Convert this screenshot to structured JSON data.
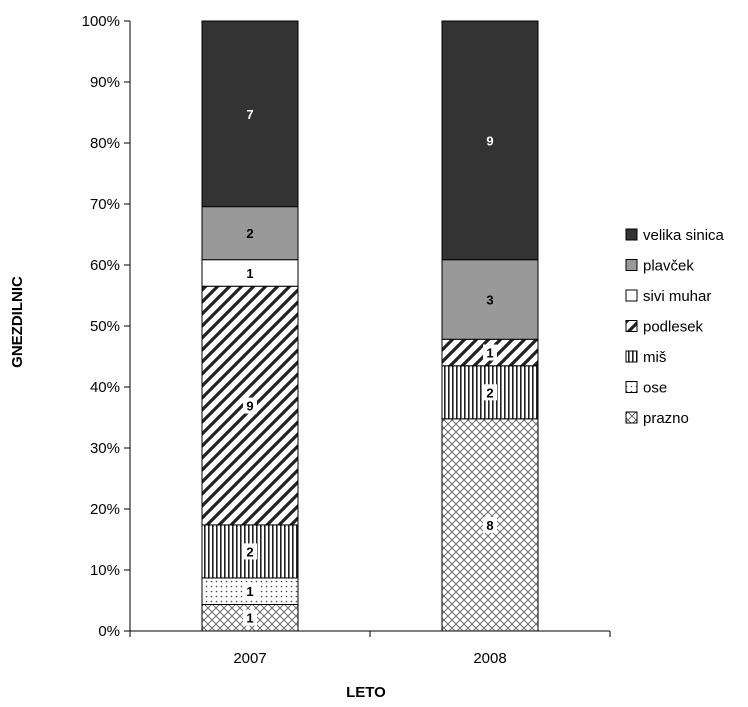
{
  "chart_data": {
    "type": "bar",
    "stacked": "percent",
    "categories": [
      "2007",
      "2008"
    ],
    "xlabel": "LETO",
    "ylabel": "GNEZDILNIC",
    "ylim": [
      0,
      100
    ],
    "yticks": [
      "0%",
      "10%",
      "20%",
      "30%",
      "40%",
      "50%",
      "60%",
      "70%",
      "80%",
      "90%",
      "100%"
    ],
    "legend_position": "right",
    "series": [
      {
        "name": "prazno",
        "values": [
          1,
          8
        ],
        "pattern": "crosshatch"
      },
      {
        "name": "ose",
        "values": [
          1,
          0
        ],
        "pattern": "dots"
      },
      {
        "name": "miš",
        "values": [
          2,
          2
        ],
        "pattern": "vertical-stripes"
      },
      {
        "name": "podlesek",
        "values": [
          9,
          1
        ],
        "pattern": "diagonal-stripes"
      },
      {
        "name": "sivi muhar",
        "values": [
          1,
          0
        ],
        "pattern": "white",
        "color": "#ffffff"
      },
      {
        "name": "plavček",
        "values": [
          2,
          3
        ],
        "color": "#999999"
      },
      {
        "name": "velika sinica",
        "values": [
          7,
          9
        ],
        "color": "#333333"
      }
    ]
  }
}
